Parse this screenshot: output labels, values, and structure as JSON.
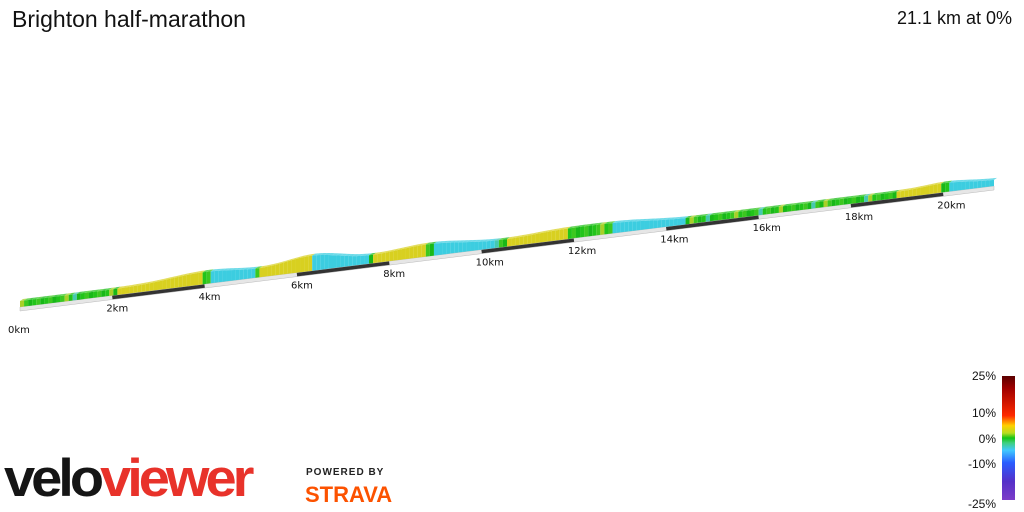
{
  "header": {
    "title": "Brighton half-marathon",
    "summary": "21.1 km at 0%"
  },
  "profile": {
    "distance_labels": [
      "0km",
      "2km",
      "4km",
      "6km",
      "8km",
      "10km",
      "12km",
      "14km",
      "16km",
      "18km",
      "20km"
    ]
  },
  "legend": {
    "labels": [
      "25%",
      "10%",
      "0%",
      "-10%",
      "-25%"
    ]
  },
  "branding": {
    "logo_part1": "velo",
    "logo_part2": "viewer",
    "powered_by": "POWERED BY",
    "strava": "STRAVA"
  },
  "colors": {
    "flat_green": "#22c41a",
    "climb_yellow": "#d8d020",
    "descent_cyan": "#3ccde0",
    "accent_red": "#e8322a",
    "strava_orange": "#fc5200"
  }
}
